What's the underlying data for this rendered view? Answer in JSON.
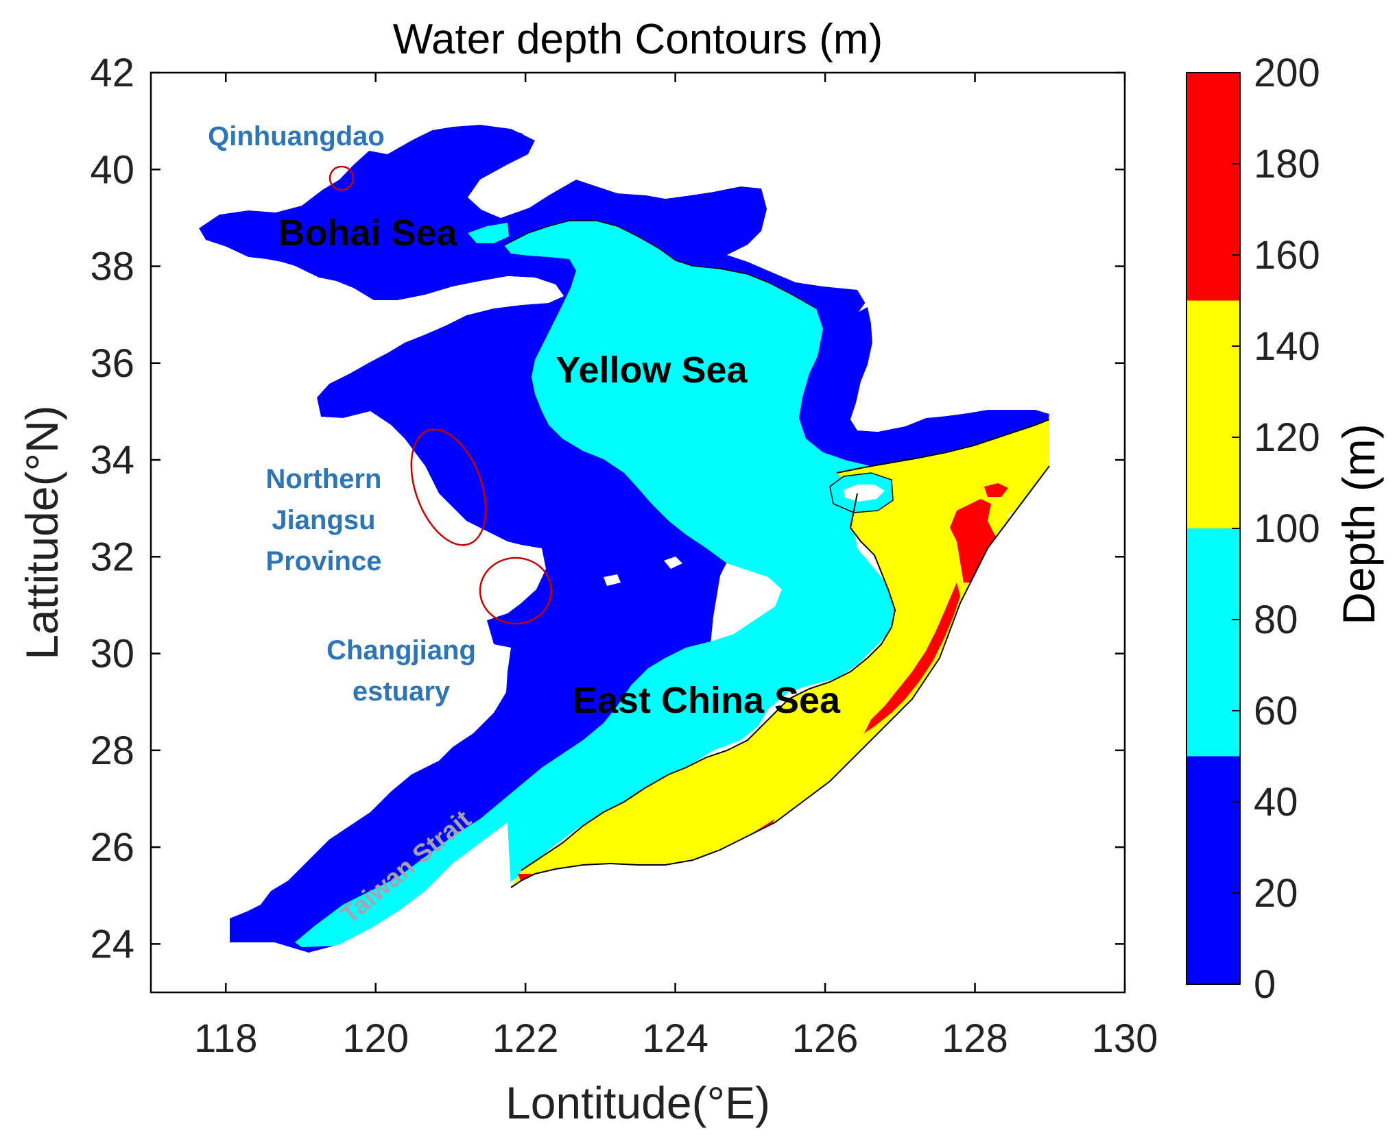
{
  "title": "Water depth Contours (m)",
  "axes": {
    "xlabel": "Lontitude(°E)",
    "ylabel": "Lattitude(°N)",
    "xlim": [
      117,
      130
    ],
    "ylim": [
      23,
      42
    ],
    "xticks": [
      "118",
      "120",
      "122",
      "124",
      "126",
      "128",
      "130"
    ],
    "yticks": [
      "24",
      "26",
      "28",
      "30",
      "32",
      "34",
      "36",
      "38",
      "40",
      "42"
    ]
  },
  "colorbar": {
    "label": "Depth (m)",
    "range": [
      0,
      200
    ],
    "ticks": [
      "0",
      "20",
      "40",
      "60",
      "80",
      "100",
      "120",
      "140",
      "160",
      "180",
      "200"
    ],
    "levels": [
      {
        "from": 0,
        "to": 50,
        "color": "#0000ff"
      },
      {
        "from": 50,
        "to": 100,
        "color": "#00ffff"
      },
      {
        "from": 100,
        "to": 150,
        "color": "#ffff00"
      },
      {
        "from": 150,
        "to": 200,
        "color": "#ff0000"
      }
    ]
  },
  "colors": {
    "shallow": "#0000ff",
    "mid": "#00ffff",
    "deep": "#ffff00",
    "deepest": "#ff0000",
    "region_label": "#000000",
    "place_label": "#2e75b6",
    "strait_label": "#a3a3b8",
    "marker": "#c00000"
  },
  "labels": {
    "bohai": "Bohai Sea",
    "yellow": "Yellow Sea",
    "ecs": "East China Sea",
    "qinhuangdao": "Qinhuangdao",
    "jiangsu": [
      "Northern",
      "Jiangsu",
      "Province"
    ],
    "changjiang": [
      "Changjiang",
      "estuary"
    ],
    "taiwan": "Taiwan Strait"
  },
  "markers": [
    {
      "name": "qinhuangdao-circle",
      "lon": 119.6,
      "lat": 39.8
    },
    {
      "name": "jiangsu-ellipse",
      "lon": 121.0,
      "lat": 33.2
    },
    {
      "name": "changjiang-ellipse",
      "lon": 121.8,
      "lat": 31.3
    }
  ]
}
